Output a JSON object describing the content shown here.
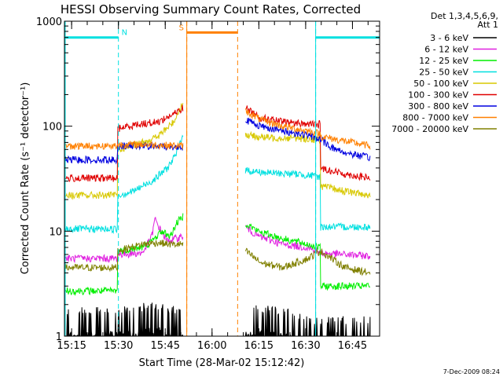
{
  "chart_data": {
    "type": "line",
    "title": "HESSI Observing Summary Count Rates, Corrected",
    "xlabel": "Start Time (28-Mar-02 15:12:42)",
    "ylabel": "Corrected Count Rate (s⁻¹ detector⁻¹)",
    "y_scale": "log",
    "ylim": [
      1,
      1000
    ],
    "yticks": [
      {
        "value": 1,
        "label": "1"
      },
      {
        "value": 10,
        "label": "10"
      },
      {
        "value": 100,
        "label": "100"
      },
      {
        "value": 1000,
        "label": "1000"
      }
    ],
    "xlim_minutes": [
      0,
      101
    ],
    "xticks": [
      {
        "minute": 2.3,
        "label": "15:15"
      },
      {
        "minute": 17.3,
        "label": "15:30"
      },
      {
        "minute": 32.3,
        "label": "15:45"
      },
      {
        "minute": 47.3,
        "label": "16:00"
      },
      {
        "minute": 62.3,
        "label": "16:15"
      },
      {
        "minute": 77.3,
        "label": "16:30"
      },
      {
        "minute": 92.3,
        "label": "16:45"
      }
    ],
    "legend": {
      "placement": "right",
      "header": [
        "Det 1,3,4,5,6,9,",
        "Att 1"
      ]
    },
    "series": [
      {
        "name": "3 - 6 keV",
        "color": "#000000",
        "segments": [
          {
            "x": [
              0,
              17,
              17.1,
              30,
              33,
              38
            ],
            "y": [
              1.6,
              1.6,
              1.6,
              1.8,
              1.6,
              1.7
            ]
          },
          {
            "x": [
              58,
              70,
              80,
              90,
              98
            ],
            "y": [
              1.7,
              1.6,
              1.3,
              1.3,
              1.3
            ]
          }
        ],
        "noise": "spiky"
      },
      {
        "name": "6 - 12 keV",
        "color": "#e020e0",
        "segments": [
          {
            "x": [
              0,
              17,
              17.1,
              25,
              28,
              29,
              31,
              33,
              38
            ],
            "y": [
              5.5,
              5.5,
              6,
              6.2,
              9,
              13,
              10,
              8,
              9
            ]
          },
          {
            "x": [
              58,
              62,
              70,
              78,
              82,
              90,
              98
            ],
            "y": [
              11,
              9,
              7.5,
              7,
              6.2,
              6,
              5.8
            ]
          }
        ]
      },
      {
        "name": "12 - 25 keV",
        "color": "#00ee00",
        "segments": [
          {
            "x": [
              0,
              17,
              17.1,
              25,
              28,
              31,
              34,
              36,
              38
            ],
            "y": [
              2.7,
              2.7,
              6.5,
              7,
              8,
              10,
              9,
              12,
              14
            ]
          },
          {
            "x": [
              58,
              62,
              70,
              78,
              82,
              82.1,
              90,
              98
            ],
            "y": [
              12,
              10,
              8.5,
              7.5,
              7,
              3,
              3,
              3
            ]
          }
        ]
      },
      {
        "name": "25 - 50 keV",
        "color": "#00e0e0",
        "segments": [
          {
            "x": [
              0,
              17,
              17.1,
              22,
              28,
              33,
              36,
              38
            ],
            "y": [
              10.5,
              10.5,
              22,
              24,
              30,
              40,
              55,
              85
            ]
          },
          {
            "x": [
              58,
              65,
              75,
              82,
              82.1,
              90,
              98
            ],
            "y": [
              38,
              36,
              35,
              33,
              11,
              11,
              11
            ]
          }
        ]
      },
      {
        "name": "50 - 100 keV",
        "color": "#d8c800",
        "segments": [
          {
            "x": [
              0,
              17,
              17.1,
              24,
              30,
              35,
              38
            ],
            "y": [
              22,
              22,
              60,
              68,
              80,
              110,
              170
            ]
          },
          {
            "x": [
              58,
              65,
              75,
              82,
              82.1,
              90,
              98
            ],
            "y": [
              82,
              78,
              77,
              74,
              27,
              24,
              22
            ]
          }
        ]
      },
      {
        "name": "100 - 300 keV",
        "color": "#e00000",
        "segments": [
          {
            "x": [
              0,
              17,
              17.1,
              24,
              30,
              35,
              38,
              38.1
            ],
            "y": [
              32,
              32,
              95,
              105,
              110,
              130,
              150,
              20
            ]
          },
          {
            "x": [
              58,
              63,
              70,
              78,
              82,
              82.1,
              90,
              98
            ],
            "y": [
              150,
              120,
              110,
              105,
              105,
              40,
              35,
              32
            ]
          }
        ]
      },
      {
        "name": "300 - 800 keV",
        "color": "#0000e0",
        "segments": [
          {
            "x": [
              0,
              17,
              17.1,
              25,
              32,
              37,
              38
            ],
            "y": [
              48,
              48,
              65,
              65,
              64,
              63,
              64
            ]
          },
          {
            "x": [
              58,
              63,
              70,
              78,
              82,
              86,
              90,
              98
            ],
            "y": [
              115,
              100,
              90,
              82,
              75,
              62,
              56,
              50
            ]
          }
        ]
      },
      {
        "name": "800 - 7000 keV",
        "color": "#ff8000",
        "segments": [
          {
            "x": [
              0,
              17,
              17.1,
              25,
              32,
              37,
              38
            ],
            "y": [
              65,
              65,
              67,
              67,
              66,
              65,
              65
            ]
          },
          {
            "x": [
              58,
              63,
              70,
              78,
              82,
              82.1,
              90,
              98
            ],
            "y": [
              140,
              115,
              100,
              90,
              85,
              80,
              72,
              65
            ]
          }
        ]
      },
      {
        "name": "7000 - 20000 keV",
        "color": "#808000",
        "segments": [
          {
            "x": [
              0,
              17,
              17.1,
              25,
              30,
              34,
              38
            ],
            "y": [
              4.5,
              4.5,
              6.5,
              7.5,
              7.8,
              7.5,
              7.5
            ]
          },
          {
            "x": [
              58,
              63,
              70,
              78,
              82,
              90,
              98
            ],
            "y": [
              6.5,
              5,
              4.5,
              5.5,
              6.5,
              4.5,
              4
            ]
          }
        ]
      }
    ],
    "flags": [
      {
        "label": "N",
        "color": "#00e0e0",
        "kind": "night",
        "intervals": [
          [
            0,
            17.3
          ],
          [
            80.5,
            101
          ]
        ],
        "level": 700
      },
      {
        "label": "S",
        "color": "#ff8000",
        "kind": "saa",
        "intervals": [
          [
            39.2,
            55.5
          ]
        ],
        "level": 780
      }
    ],
    "timestamp": "7-Dec-2009 08:24"
  }
}
